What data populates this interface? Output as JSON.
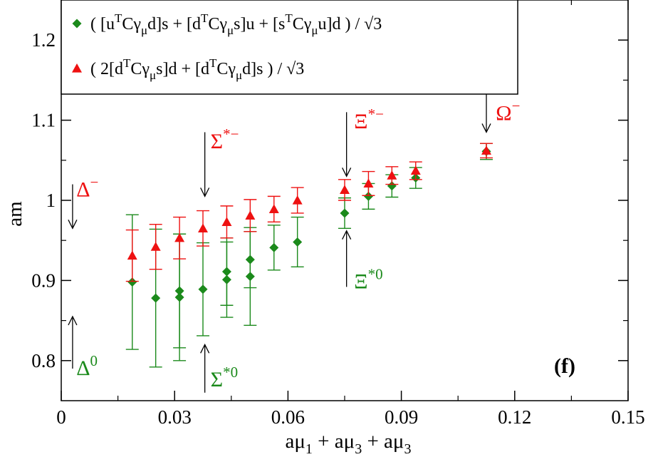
{
  "chart_data": {
    "type": "scatter",
    "title": "",
    "panel_label": "(f)",
    "xlabel": {
      "main1": "aμ",
      "sub1": "1",
      "main2": " + aμ",
      "sub2": "3",
      "main3": " + aμ",
      "sub3": "3"
    },
    "ylabel": "am",
    "xlim": [
      0,
      0.15
    ],
    "ylim": [
      0.75,
      1.25
    ],
    "x_ticks": [
      0,
      0.03,
      0.06,
      0.09,
      0.12,
      0.15
    ],
    "x_tick_labels": [
      "0",
      "0.03",
      "0.06",
      "0.09",
      "0.12",
      "0.15"
    ],
    "y_ticks": [
      0.8,
      0.9,
      1.0,
      1.1,
      1.2
    ],
    "y_tick_labels": [
      "0.8",
      "0.9",
      "1",
      "1.1",
      "1.2"
    ],
    "legend": {
      "placement": "top-left",
      "entries": [
        {
          "series": 0,
          "color": "#1b8a1b",
          "marker": "diamond",
          "text_parts": [
            {
              "t": "( [u"
            },
            {
              "t": "T",
              "sup": true
            },
            {
              "t": "Cγ"
            },
            {
              "t": "μ",
              "sub": true
            },
            {
              "t": "d]s + [d"
            },
            {
              "t": "T",
              "sup": true
            },
            {
              "t": "Cγ"
            },
            {
              "t": "μ",
              "sub": true
            },
            {
              "t": "s]u + [s"
            },
            {
              "t": "T",
              "sup": true
            },
            {
              "t": "Cγ"
            },
            {
              "t": "μ",
              "sub": true
            },
            {
              "t": "u]d ) / √3"
            }
          ]
        },
        {
          "series": 1,
          "color": "#ee1111",
          "marker": "triangle",
          "text_parts": [
            {
              "t": "( 2[d"
            },
            {
              "t": "T",
              "sup": true
            },
            {
              "t": "Cγ"
            },
            {
              "t": "μ",
              "sub": true
            },
            {
              "t": "s]d + [d"
            },
            {
              "t": "T",
              "sup": true
            },
            {
              "t": "Cγ"
            },
            {
              "t": "μ",
              "sub": true
            },
            {
              "t": "d]s ) / √3"
            }
          ]
        }
      ]
    },
    "series": [
      {
        "name": "( [uTCγμd]s + [dTCγμs]u + [sTCγμu]d ) / √3",
        "color": "#1b8a1b",
        "marker": "diamond",
        "points": [
          {
            "x": 0.0188,
            "y": 0.898,
            "err": 0.084
          },
          {
            "x": 0.025,
            "y": 0.878,
            "err": 0.086
          },
          {
            "x": 0.0313,
            "y": 0.887,
            "err": 0.071
          },
          {
            "x": 0.0313,
            "y": 0.879,
            "err": 0.079
          },
          {
            "x": 0.0375,
            "y": 0.889,
            "err": 0.058
          },
          {
            "x": 0.0438,
            "y": 0.911,
            "err": 0.042
          },
          {
            "x": 0.0438,
            "y": 0.901,
            "err": 0.047
          },
          {
            "x": 0.05,
            "y": 0.926,
            "err": 0.035
          },
          {
            "x": 0.05,
            "y": 0.905,
            "err": 0.061
          },
          {
            "x": 0.0563,
            "y": 0.941,
            "err": 0.028
          },
          {
            "x": 0.0625,
            "y": 0.948,
            "err": 0.031
          },
          {
            "x": 0.075,
            "y": 0.984,
            "err": 0.019
          },
          {
            "x": 0.0813,
            "y": 1.005,
            "err": 0.016
          },
          {
            "x": 0.0875,
            "y": 1.018,
            "err": 0.014
          },
          {
            "x": 0.0938,
            "y": 1.028,
            "err": 0.013
          },
          {
            "x": 0.1125,
            "y": 1.061,
            "err": 0.01
          }
        ]
      },
      {
        "name": "( 2[dTCγμs]d + [dTCγμd]s ) / √3",
        "color": "#ee1111",
        "marker": "triangle",
        "points": [
          {
            "x": 0.0188,
            "y": 0.931,
            "err": 0.032
          },
          {
            "x": 0.025,
            "y": 0.942,
            "err": 0.028
          },
          {
            "x": 0.0313,
            "y": 0.953,
            "err": 0.026
          },
          {
            "x": 0.0375,
            "y": 0.965,
            "err": 0.022
          },
          {
            "x": 0.0438,
            "y": 0.973,
            "err": 0.02
          },
          {
            "x": 0.05,
            "y": 0.981,
            "err": 0.02
          },
          {
            "x": 0.0563,
            "y": 0.989,
            "err": 0.016
          },
          {
            "x": 0.0625,
            "y": 1.0,
            "err": 0.016
          },
          {
            "x": 0.075,
            "y": 1.013,
            "err": 0.013
          },
          {
            "x": 0.0813,
            "y": 1.021,
            "err": 0.015
          },
          {
            "x": 0.0875,
            "y": 1.031,
            "err": 0.011
          },
          {
            "x": 0.0938,
            "y": 1.037,
            "err": 0.011
          },
          {
            "x": 0.1125,
            "y": 1.062,
            "err": 0.009
          }
        ]
      }
    ],
    "annotations": [
      {
        "id": "delta-minus",
        "base": "Δ",
        "sup": "−",
        "color": "#ee1111",
        "arrow_x": 0.003,
        "arrow_from_y": 1.02,
        "arrow_to_y": 0.965,
        "label_x": 0.004,
        "label_y": 1.005
      },
      {
        "id": "delta-zero",
        "base": "Δ",
        "sup": "0",
        "color": "#1b8a1b",
        "arrow_x": 0.003,
        "arrow_from_y": 0.79,
        "arrow_to_y": 0.855,
        "label_x": 0.004,
        "label_y": 0.782
      },
      {
        "id": "sigma-star-minus",
        "base": "Σ",
        "sup": "*−",
        "color": "#ee1111",
        "arrow_x": 0.038,
        "arrow_from_y": 1.085,
        "arrow_to_y": 1.005,
        "label_x": 0.0395,
        "label_y": 1.065
      },
      {
        "id": "sigma-star-zero",
        "base": "Σ",
        "sup": "*0",
        "color": "#1b8a1b",
        "arrow_x": 0.038,
        "arrow_from_y": 0.76,
        "arrow_to_y": 0.82,
        "label_x": 0.0395,
        "label_y": 0.768
      },
      {
        "id": "xi-star-minus",
        "base": "Ξ",
        "sup": "*−",
        "color": "#ee1111",
        "arrow_x": 0.0755,
        "arrow_from_y": 1.11,
        "arrow_to_y": 1.03,
        "label_x": 0.0775,
        "label_y": 1.09
      },
      {
        "id": "xi-star-zero",
        "base": "Ξ",
        "sup": "*0",
        "color": "#1b8a1b",
        "arrow_x": 0.0755,
        "arrow_from_y": 0.892,
        "arrow_to_y": 0.962,
        "label_x": 0.0775,
        "label_y": 0.89
      },
      {
        "id": "omega-minus",
        "base": "Ω",
        "sup": "−",
        "color": "#ee1111",
        "arrow_x": 0.1125,
        "arrow_from_y": 1.14,
        "arrow_to_y": 1.085,
        "label_x": 0.115,
        "label_y": 1.1
      }
    ]
  }
}
